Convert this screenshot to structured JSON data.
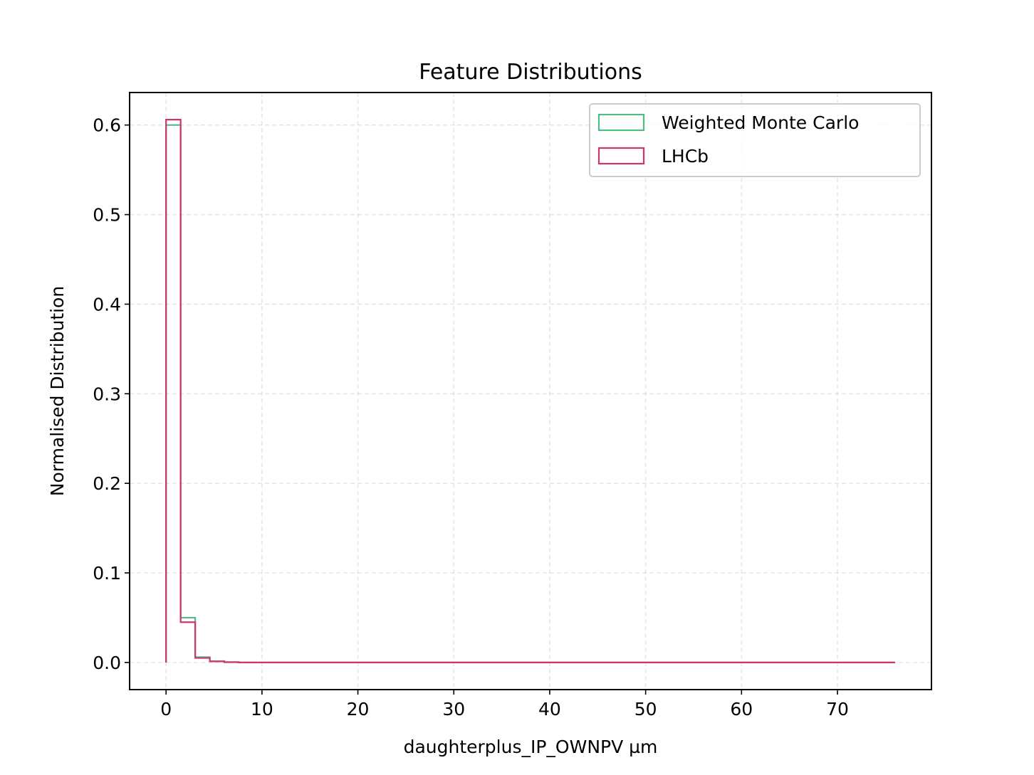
{
  "chart_data": {
    "type": "histogram",
    "title": "Feature Distributions",
    "xlabel": "daughterplus_IP_OWNPV µm",
    "ylabel": "Normalised Distribution",
    "xlim": [
      -3.8,
      79.8
    ],
    "ylim": [
      -0.0303,
      0.6363
    ],
    "xticks": [
      0,
      10,
      20,
      30,
      40,
      50,
      60,
      70
    ],
    "xtick_labels": [
      "0",
      "10",
      "20",
      "30",
      "40",
      "50",
      "60",
      "70"
    ],
    "yticks": [
      0.0,
      0.1,
      0.2,
      0.3,
      0.4,
      0.5,
      0.6
    ],
    "ytick_labels": [
      "0.0",
      "0.1",
      "0.2",
      "0.3",
      "0.4",
      "0.5",
      "0.6"
    ],
    "grid": true,
    "legend_position": "top-right",
    "bin_edges": [
      0.0,
      1.52,
      3.04,
      4.56,
      6.08,
      7.6,
      76.0
    ],
    "series": [
      {
        "name": "Weighted Monte Carlo",
        "color": "#4dbd87",
        "values": [
          0.6,
          0.05,
          0.006,
          0.0015,
          0.0004,
          0.0
        ]
      },
      {
        "name": "LHCb",
        "color": "#d0346c",
        "values": [
          0.606,
          0.045,
          0.005,
          0.0012,
          0.0003,
          0.0
        ]
      }
    ]
  }
}
